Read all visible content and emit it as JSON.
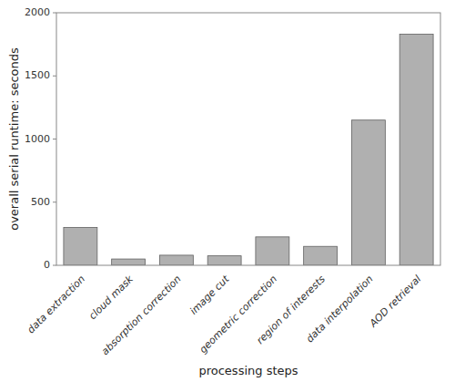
{
  "chart_data": {
    "type": "bar",
    "categories": [
      "data extraction",
      "cloud mask",
      "absorption correction",
      "image cut",
      "geometric correction",
      "region of interests",
      "data interpolation",
      "AOD retrieval"
    ],
    "values": [
      300,
      50,
      80,
      75,
      225,
      150,
      1150,
      1830
    ],
    "color": "#b0b0b0",
    "xlabel": "processing steps",
    "ylabel": "overall serial runtime: seconds",
    "ylim": [
      0,
      2000
    ],
    "yticks": [
      0,
      500,
      1000,
      1500,
      2000
    ],
    "grid": false
  }
}
